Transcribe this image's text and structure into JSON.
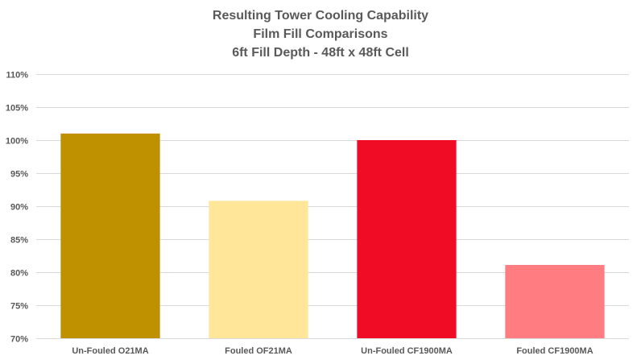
{
  "chart_data": {
    "type": "bar",
    "title_lines": [
      "Resulting Tower Cooling Capability",
      "Film Fill Comparisons",
      "6ft Fill Depth - 48ft x 48ft Cell"
    ],
    "xlabel": "",
    "ylabel": "",
    "categories": [
      "Un-Fouled O21MA",
      "Fouled OF21MA",
      "Un-Fouled CF1900MA",
      "Fouled CF1900MA"
    ],
    "values": [
      101,
      90.8,
      100,
      81.1
    ],
    "colors": [
      "#bf9000",
      "#ffe699",
      "#f00c24",
      "#ff7c80"
    ],
    "ylim": [
      70,
      110
    ],
    "yticks": [
      70,
      75,
      80,
      85,
      90,
      95,
      100,
      105,
      110
    ],
    "ytick_labels": [
      "70%",
      "75%",
      "80%",
      "85%",
      "90%",
      "95%",
      "100%",
      "105%",
      "110%"
    ],
    "grid": true,
    "legend": "none"
  }
}
